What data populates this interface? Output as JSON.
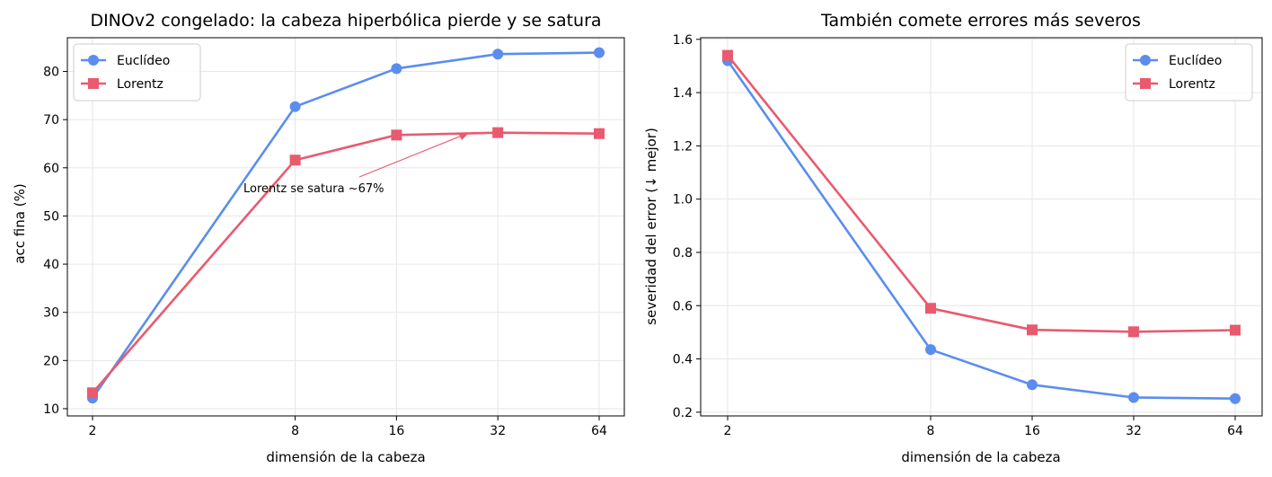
{
  "chart_data": [
    {
      "type": "line",
      "title": "DINOv2 congelado: la cabeza hiperbólica pierde y se satura",
      "xlabel": "dimensión de la cabeza",
      "ylabel": "acc fina (%)",
      "categories": [
        "2",
        "8",
        "16",
        "32",
        "64"
      ],
      "xscale": "log2",
      "ylim": [
        8.5,
        87
      ],
      "yticks": [
        10,
        20,
        30,
        40,
        50,
        60,
        70,
        80
      ],
      "grid": true,
      "legend": "top-left",
      "series": [
        {
          "name": "Euclídeo",
          "values": [
            12.2,
            72.7,
            80.6,
            83.6,
            83.9
          ],
          "color": "#5b8def",
          "marker": "circle"
        },
        {
          "name": "Lorentz",
          "values": [
            13.3,
            61.6,
            66.8,
            67.3,
            67.1
          ],
          "color": "#e95a6f",
          "marker": "square"
        }
      ],
      "annotations": [
        {
          "text": "Lorentz se satura ~67%",
          "points_to": {
            "x": "32",
            "y": 67.3
          }
        }
      ]
    },
    {
      "type": "line",
      "title": "También comete errores más severos",
      "xlabel": "dimensión de la cabeza",
      "ylabel": "severidad del error (↓ mejor)",
      "categories": [
        "2",
        "8",
        "16",
        "32",
        "64"
      ],
      "xscale": "log2",
      "ylim": [
        0.186,
        1.606
      ],
      "yticks": [
        0.2,
        0.4,
        0.6,
        0.8,
        1.0,
        1.2,
        1.4,
        1.6
      ],
      "ytick_labels": [
        "0.2",
        "0.4",
        "0.6",
        "0.8",
        "1.0",
        "1.2",
        "1.4",
        "1.6"
      ],
      "grid": true,
      "legend": "top-right",
      "series": [
        {
          "name": "Euclídeo",
          "values": [
            1.52,
            0.435,
            0.303,
            0.255,
            0.251
          ],
          "color": "#5b8def",
          "marker": "circle"
        },
        {
          "name": "Lorentz",
          "values": [
            1.54,
            0.59,
            0.509,
            0.502,
            0.508
          ],
          "color": "#e95a6f",
          "marker": "square"
        }
      ]
    }
  ]
}
